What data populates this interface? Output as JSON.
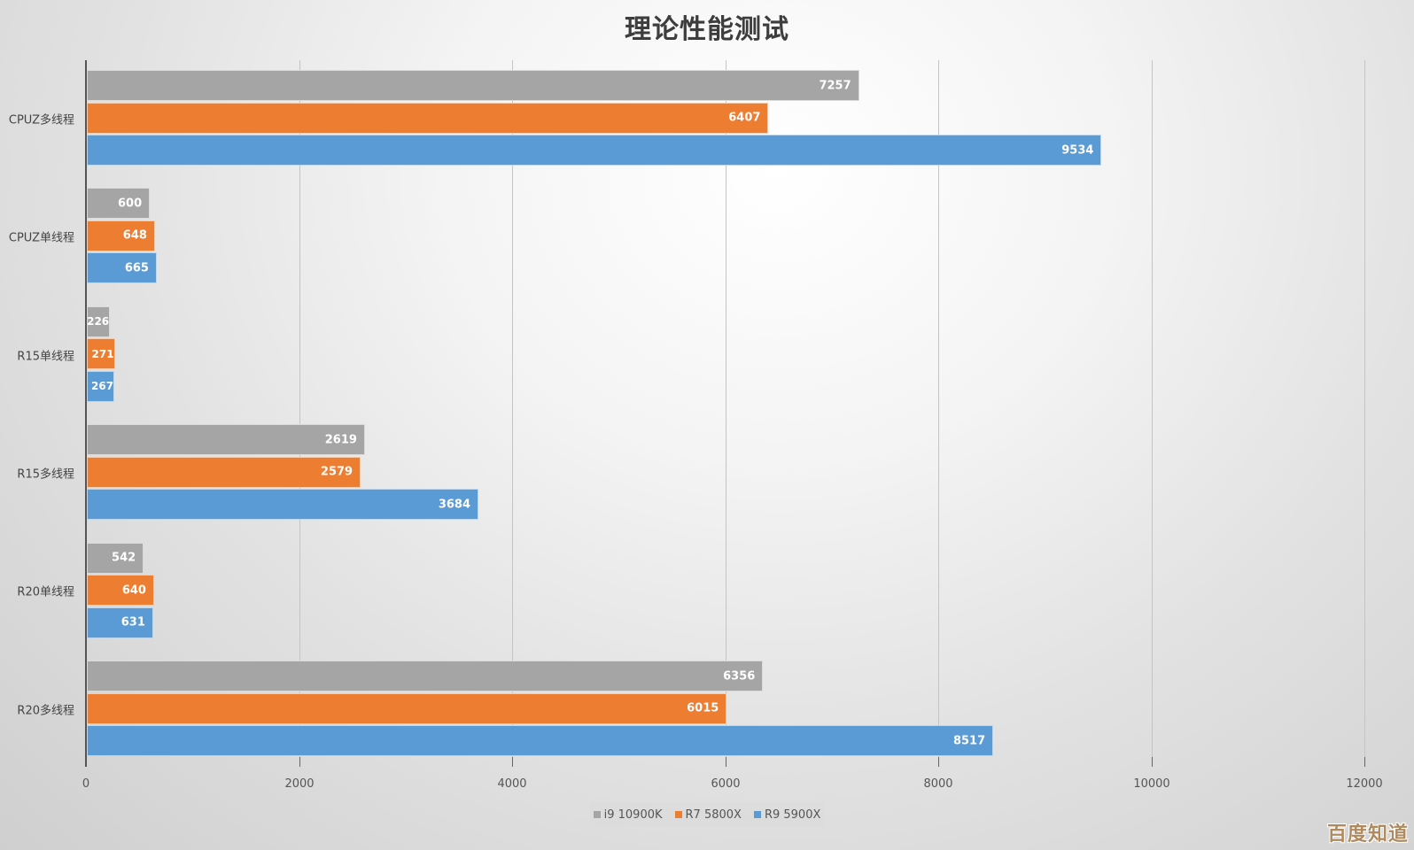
{
  "chart_data": {
    "type": "bar",
    "orientation": "horizontal",
    "title": "理论性能测试",
    "xlabel": "",
    "ylabel": "",
    "xlim": [
      0,
      12000
    ],
    "xticks": [
      0,
      2000,
      4000,
      6000,
      8000,
      10000,
      12000
    ],
    "grid": true,
    "legend_position": "bottom",
    "categories": [
      "CPUZ多线程",
      "CPUZ单线程",
      "R15单线程",
      "R15多线程",
      "R20单线程",
      "R20多线程"
    ],
    "series": [
      {
        "name": "i9 10900K",
        "color": "#a5a5a5",
        "values": [
          7257,
          600,
          226,
          2619,
          542,
          6356
        ]
      },
      {
        "name": "R7 5800X",
        "color": "#ed7d31",
        "values": [
          6407,
          648,
          271,
          2579,
          640,
          6015
        ]
      },
      {
        "name": "R9 5900X",
        "color": "#5b9bd5",
        "values": [
          9534,
          665,
          267,
          3684,
          631,
          8517
        ]
      }
    ],
    "data_labels": true
  },
  "watermark": "百度知道"
}
